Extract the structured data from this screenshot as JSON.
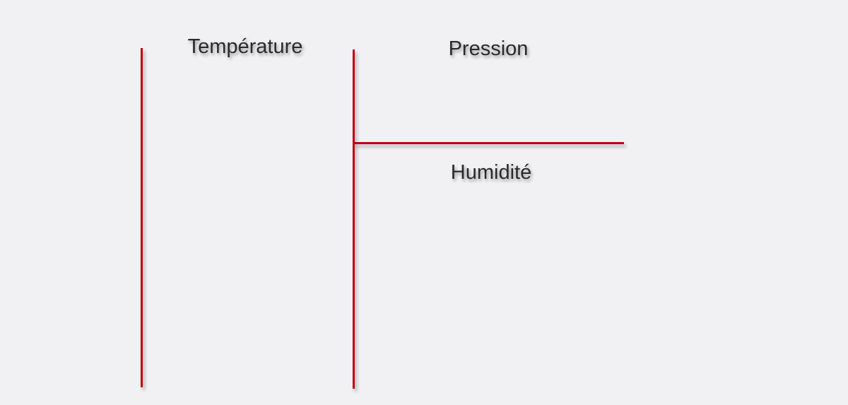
{
  "labels": {
    "temperature": "Température",
    "pression": "Pression",
    "humidite": "Humidité"
  },
  "colors": {
    "background": "#f1f1f3",
    "divider": "#c0000b",
    "text": "#2a2a2a"
  }
}
